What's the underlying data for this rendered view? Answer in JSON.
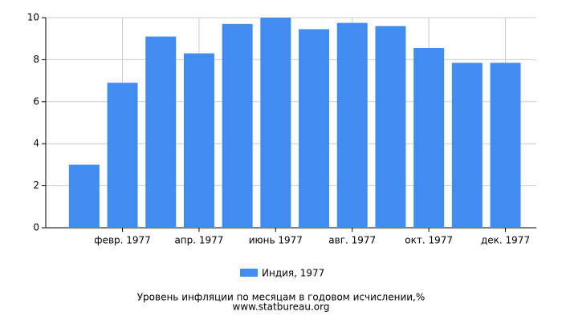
{
  "chart_data": {
    "type": "bar",
    "title": "Уровень инфляции по месяцам в годовом исчислении,%",
    "subtitle": "www.statbureau.org",
    "categories": [
      null,
      "февр. 1977",
      null,
      "апр. 1977",
      null,
      "июнь 1977",
      null,
      "авг. 1977",
      null,
      "окт. 1977",
      null,
      "дек. 1977"
    ],
    "series": [
      {
        "name": "Индия, 1977",
        "color": "#418cf0",
        "values": [
          3.0,
          6.9,
          9.1,
          8.3,
          9.7,
          10.0,
          9.45,
          9.75,
          9.6,
          8.55,
          7.85,
          7.85
        ]
      }
    ],
    "ylim": [
      0,
      10
    ],
    "yticks": [
      0,
      2,
      4,
      6,
      8,
      10
    ],
    "grid": true
  }
}
